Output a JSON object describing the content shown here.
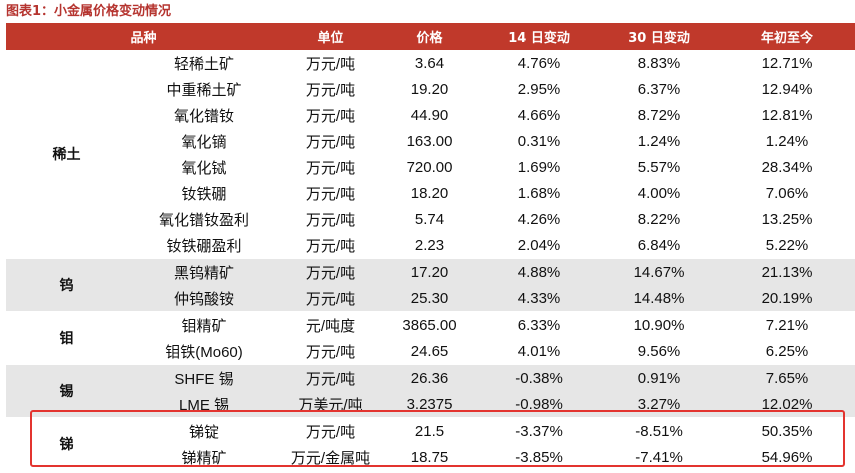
{
  "title": "图表1：小金属价格变动情况",
  "headers": [
    "品种",
    "单位",
    "价格",
    "14 日变动",
    "30 日变动",
    "年初至今"
  ],
  "groups": [
    {
      "category": "稀土",
      "shaded": false,
      "rows": [
        {
          "name": "轻稀土矿",
          "unit": "万元/吨",
          "price": "3.64",
          "d14": "4.76%",
          "d30": "8.83%",
          "ytd": "12.71%"
        },
        {
          "name": "中重稀土矿",
          "unit": "万元/吨",
          "price": "19.20",
          "d14": "2.95%",
          "d30": "6.37%",
          "ytd": "12.94%"
        },
        {
          "name": "氧化镨钕",
          "unit": "万元/吨",
          "price": "44.90",
          "d14": "4.66%",
          "d30": "8.72%",
          "ytd": "12.81%"
        },
        {
          "name": "氧化镝",
          "unit": "万元/吨",
          "price": "163.00",
          "d14": "0.31%",
          "d30": "1.24%",
          "ytd": "1.24%"
        },
        {
          "name": "氧化铽",
          "unit": "万元/吨",
          "price": "720.00",
          "d14": "1.69%",
          "d30": "5.57%",
          "ytd": "28.34%"
        },
        {
          "name": "钕铁硼",
          "unit": "万元/吨",
          "price": "18.20",
          "d14": "1.68%",
          "d30": "4.00%",
          "ytd": "7.06%"
        },
        {
          "name": "氧化镨钕盈利",
          "unit": "万元/吨",
          "price": "5.74",
          "d14": "4.26%",
          "d30": "8.22%",
          "ytd": "13.25%"
        },
        {
          "name": "钕铁硼盈利",
          "unit": "万元/吨",
          "price": "2.23",
          "d14": "2.04%",
          "d30": "6.84%",
          "ytd": "5.22%"
        }
      ]
    },
    {
      "category": "钨",
      "shaded": true,
      "rows": [
        {
          "name": "黑钨精矿",
          "unit": "万元/吨",
          "price": "17.20",
          "d14": "4.88%",
          "d30": "14.67%",
          "ytd": "21.13%"
        },
        {
          "name": "仲钨酸铵",
          "unit": "万元/吨",
          "price": "25.30",
          "d14": "4.33%",
          "d30": "14.48%",
          "ytd": "20.19%"
        }
      ]
    },
    {
      "category": "钼",
      "shaded": false,
      "rows": [
        {
          "name": "钼精矿",
          "unit": "元/吨度",
          "price": "3865.00",
          "d14": "6.33%",
          "d30": "10.90%",
          "ytd": "7.21%"
        },
        {
          "name": "钼铁(Mo60)",
          "unit": "万元/吨",
          "price": "24.65",
          "d14": "4.01%",
          "d30": "9.56%",
          "ytd": "6.25%"
        }
      ]
    },
    {
      "category": "锡",
      "shaded": true,
      "rows": [
        {
          "name": "SHFE 锡",
          "unit": "万元/吨",
          "price": "26.36",
          "d14": "-0.38%",
          "d30": "0.91%",
          "ytd": "7.65%"
        },
        {
          "name": "LME 锡",
          "unit": "万美元/吨",
          "price": "3.2375",
          "d14": "-0.98%",
          "d30": "3.27%",
          "ytd": "12.02%"
        }
      ]
    },
    {
      "category": "锑",
      "shaded": false,
      "rows": [
        {
          "name": "锑锭",
          "unit": "万元/吨",
          "price": "21.5",
          "d14": "-3.37%",
          "d30": "-8.51%",
          "ytd": "50.35%"
        },
        {
          "name": "锑精矿",
          "unit": "万元/金属吨",
          "price": "18.75",
          "d14": "-3.85%",
          "d30": "-7.41%",
          "ytd": "54.96%"
        }
      ]
    }
  ]
}
